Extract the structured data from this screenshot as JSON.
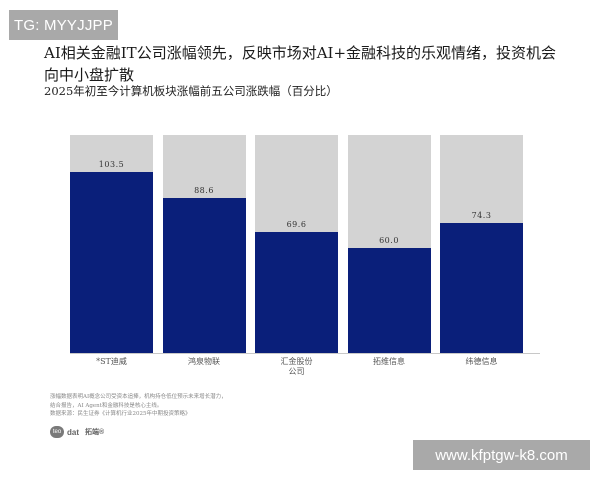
{
  "watermarks": {
    "top": "TG: MYYJJPP",
    "bottom": "www.kfptgw-k8.com"
  },
  "header": {
    "title": "AI相关金融IT公司涨幅领先，反映市场对AI+金融科技的乐观情绪，投资机会向中小盘扩散",
    "subtitle": "2025年初至今计算机板块涨幅前五公司涨跌幅（百分比）"
  },
  "chart_data": {
    "type": "bar",
    "title": "2025年初至今计算机板块涨幅前五公司涨跌幅（百分比）",
    "categories": [
      "*ST迪威",
      "鸿泉物联",
      "汇金股份公司",
      "拓维信息",
      "纬德信息"
    ],
    "category_labels": [
      [
        "*ST迪威"
      ],
      [
        "鸿泉物联"
      ],
      [
        "汇金股份",
        "公司"
      ],
      [
        "拓维信息"
      ],
      [
        "纬德信息"
      ]
    ],
    "values": [
      103.5,
      88.6,
      69.6,
      60.0,
      74.3
    ],
    "value_labels": [
      "103.5",
      "88.6",
      "69.6",
      "60.0",
      "74.3"
    ],
    "xlabel": "",
    "ylabel": "",
    "ylim": [
      0,
      125
    ],
    "grid": false,
    "legend": null,
    "colors": {
      "bar": "#0a1f7a",
      "background_bar": "#d3d3d3"
    }
  },
  "footnote": {
    "lines": [
      "涨幅数据表明AI概念公司受资本追捧，机构持仓低位预示未来增长潜力，",
      "结合报告，AI Agent和金融科技是核心主线。",
      "数据来源：民生证券《计算机行业2025年中期投资策略》"
    ]
  },
  "logo": {
    "mark": "teo",
    "text": "dat",
    "cn": "拓端®"
  }
}
